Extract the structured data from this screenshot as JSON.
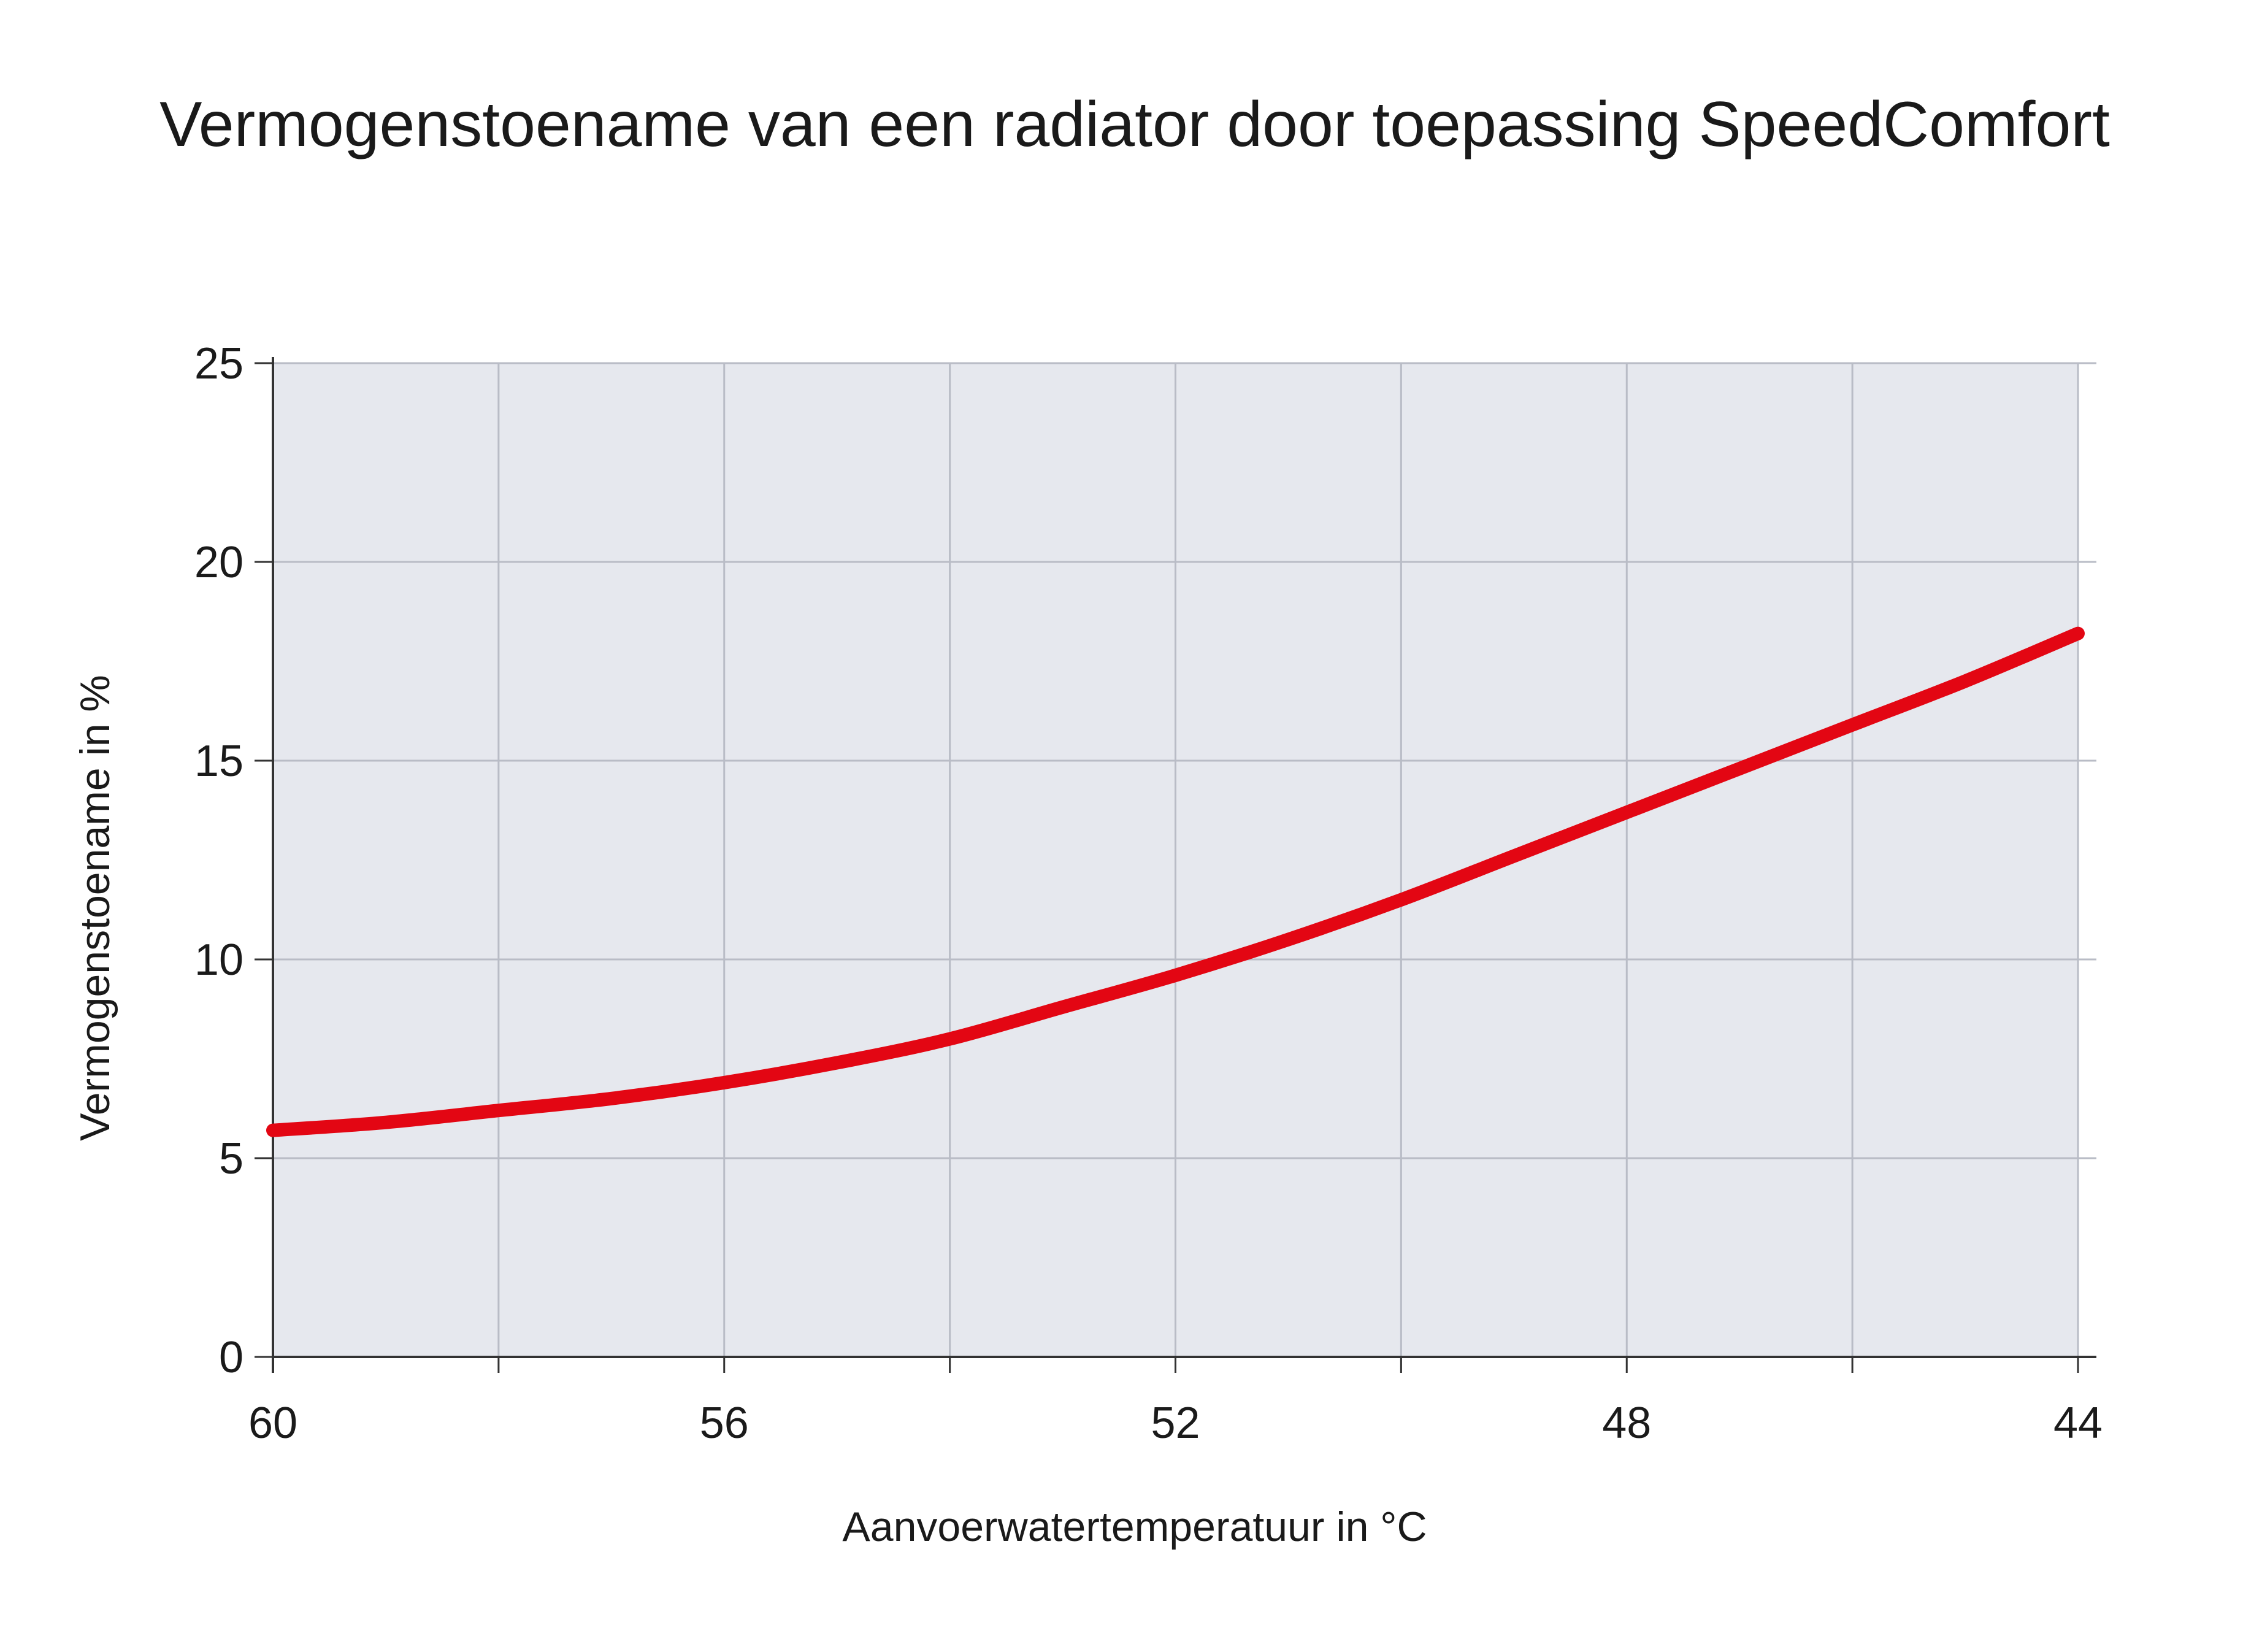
{
  "chart_data": {
    "type": "line",
    "title": "Vermogenstoename van een radiator door toepassing SpeedComfort",
    "xlabel": "Aanvoerwatertemperatuur in °C",
    "ylabel": "Vermogenstoename in %",
    "xlim": [
      60,
      44
    ],
    "ylim": [
      0,
      25
    ],
    "x_ticks": [
      60,
      56,
      52,
      48,
      44
    ],
    "y_ticks": [
      0,
      5,
      10,
      15,
      20,
      25
    ],
    "x_tick_labels": [
      "60",
      "56",
      "52",
      "48",
      "44"
    ],
    "y_tick_labels": [
      "0",
      "5",
      "10",
      "15",
      "20",
      "25"
    ],
    "grid": true,
    "legend": "none",
    "colors": {
      "line": "#e30613",
      "plot_background": "#e6e8ee",
      "grid": "#b9bcc6"
    },
    "series": [
      {
        "x": [
          60,
          59,
          58,
          57,
          56,
          55,
          54,
          53,
          52,
          51,
          50,
          49,
          48,
          47,
          46,
          45,
          44
        ],
        "values": [
          5.7,
          5.9,
          6.2,
          6.5,
          6.9,
          7.4,
          8.0,
          8.8,
          9.6,
          10.5,
          11.5,
          12.6,
          13.7,
          14.8,
          15.9,
          17.0,
          18.2
        ]
      }
    ]
  }
}
